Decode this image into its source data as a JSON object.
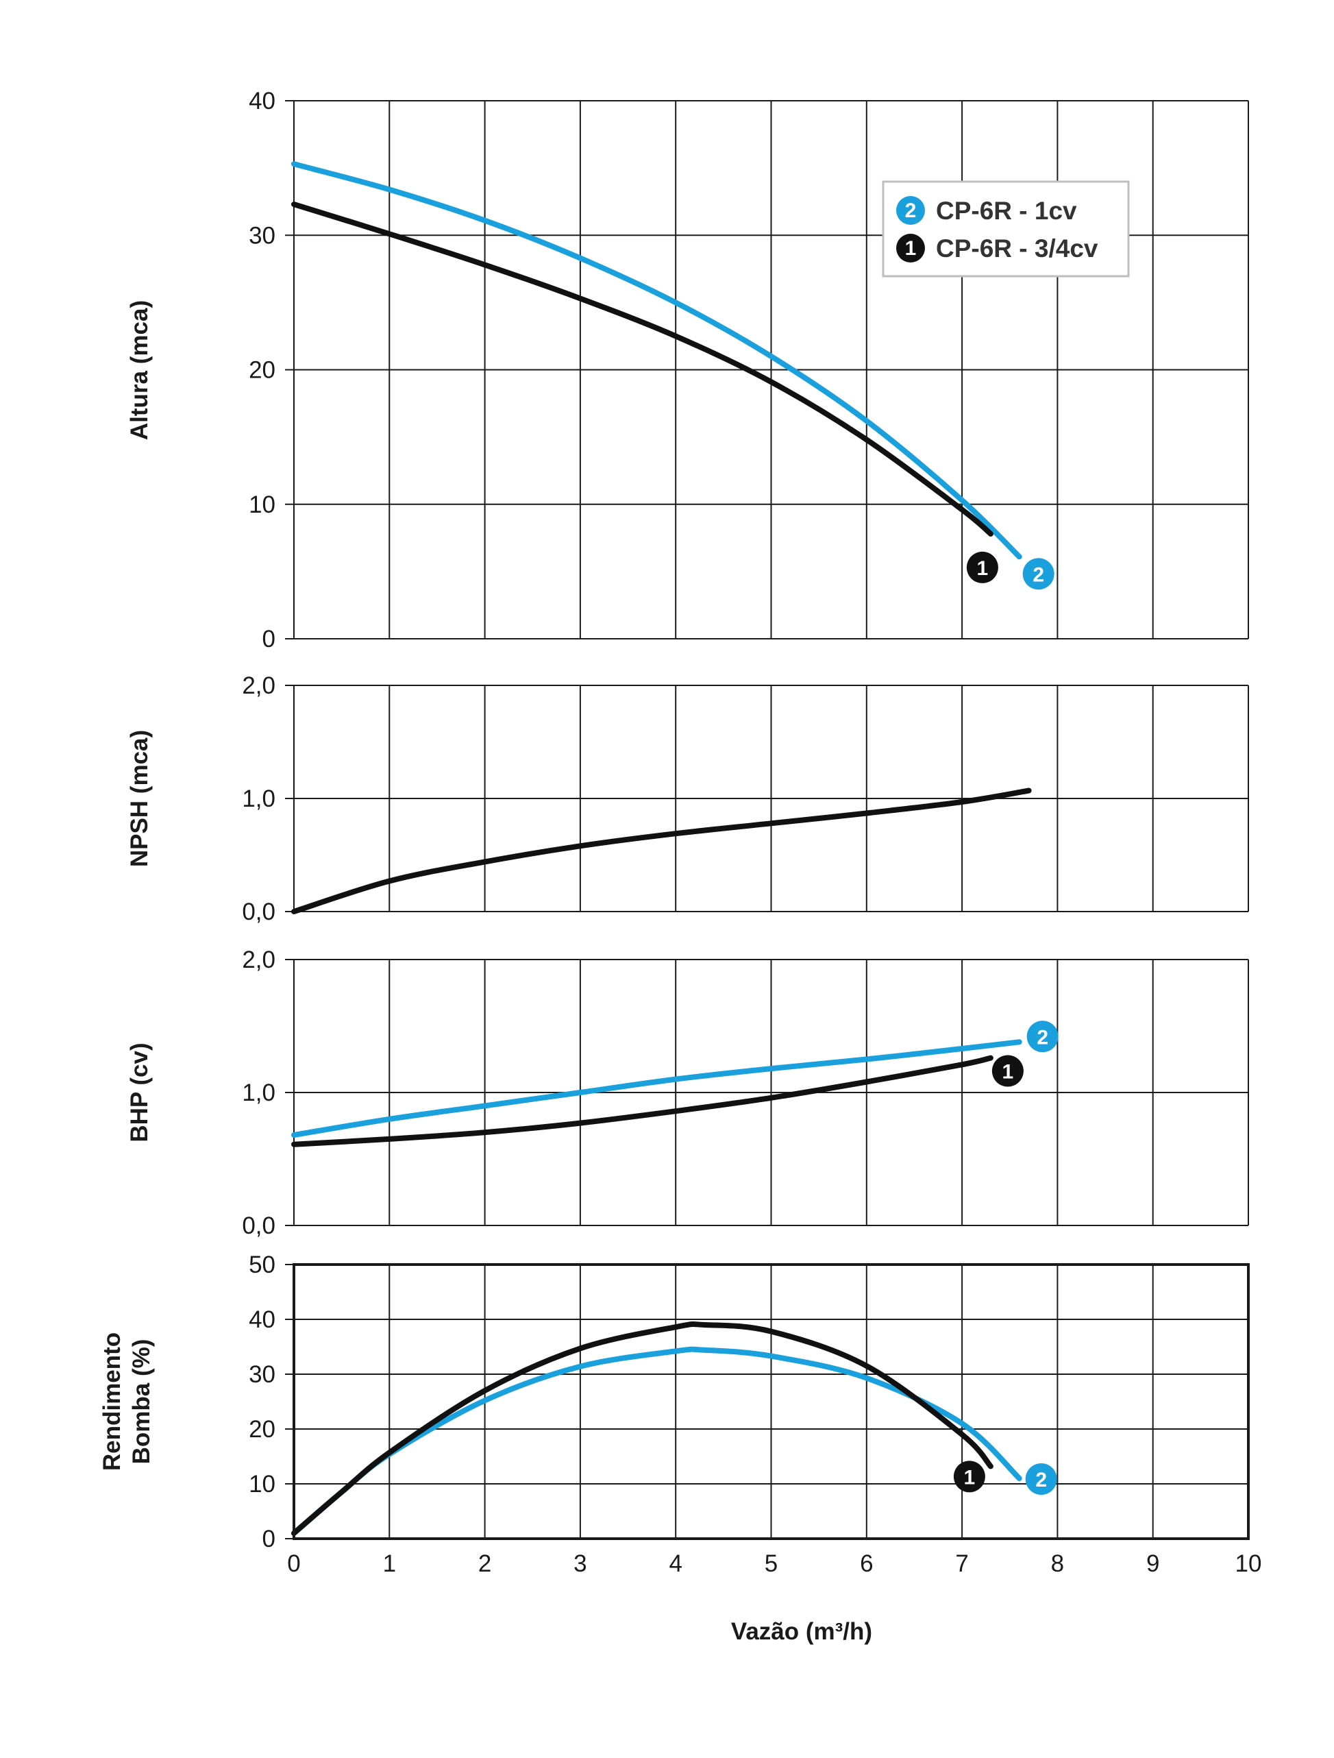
{
  "colors": {
    "curve_1": "#111111",
    "curve_2": "#1aa0dc",
    "grid": "#1a1a1a",
    "legend_border": "#bdbdbd",
    "background": "#ffffff"
  },
  "xlabel": "Vazão (m³/h)",
  "x_tick_labels": [
    "0",
    "1",
    "2",
    "3",
    "4",
    "5",
    "6",
    "7",
    "8",
    "9",
    "10"
  ],
  "legend": {
    "position": "top-right of first panel",
    "items": [
      {
        "badge": "2",
        "label": "CP-6R - 1cv",
        "color": "#1aa0dc"
      },
      {
        "badge": "1",
        "label": "CP-6R - 3/4cv",
        "color": "#111111"
      }
    ]
  },
  "chart_data": [
    {
      "type": "line",
      "ylabel": "Altura (mca)",
      "xlim": [
        0,
        10
      ],
      "ylim": [
        0,
        40
      ],
      "y_tick_labels": [
        "0",
        "10",
        "20",
        "30",
        "40"
      ],
      "grid": true,
      "series": [
        {
          "badge": "2",
          "color": "#1aa0dc",
          "x": [
            0,
            1,
            2,
            3,
            4,
            5,
            6,
            7,
            7.6
          ],
          "y": [
            35.3,
            33.4,
            31.1,
            28.3,
            25.0,
            21.0,
            16.2,
            10.3,
            6.1
          ]
        },
        {
          "badge": "1",
          "color": "#111111",
          "x": [
            0,
            1,
            2,
            3,
            4,
            5,
            6,
            7,
            7.3
          ],
          "y": [
            32.3,
            30.1,
            27.8,
            25.3,
            22.5,
            19.1,
            14.8,
            9.6,
            7.8
          ]
        }
      ]
    },
    {
      "type": "line",
      "ylabel": "NPSH (mca)",
      "xlim": [
        0,
        10
      ],
      "ylim": [
        0,
        2
      ],
      "y_tick_labels": [
        "0,0",
        "1,0",
        "2,0"
      ],
      "grid": true,
      "series": [
        {
          "badge": "",
          "color": "#111111",
          "x": [
            0,
            1,
            2,
            3,
            4,
            5,
            6,
            7,
            7.7
          ],
          "y": [
            0.0,
            0.27,
            0.44,
            0.58,
            0.69,
            0.78,
            0.87,
            0.97,
            1.07
          ]
        }
      ]
    },
    {
      "type": "line",
      "ylabel": "BHP (cv)",
      "xlim": [
        0,
        10
      ],
      "ylim": [
        0,
        2
      ],
      "y_tick_labels": [
        "0,0",
        "1,0",
        "2,0"
      ],
      "grid": true,
      "series": [
        {
          "badge": "2",
          "color": "#1aa0dc",
          "x": [
            0,
            1,
            2,
            3,
            4,
            5,
            6,
            7,
            7.6
          ],
          "y": [
            0.68,
            0.8,
            0.9,
            1.0,
            1.1,
            1.18,
            1.25,
            1.33,
            1.38
          ]
        },
        {
          "badge": "1",
          "color": "#111111",
          "x": [
            0,
            1,
            2,
            3,
            4,
            5,
            6,
            7,
            7.3
          ],
          "y": [
            0.61,
            0.65,
            0.7,
            0.77,
            0.86,
            0.96,
            1.08,
            1.21,
            1.26
          ]
        }
      ]
    },
    {
      "type": "line",
      "ylabel": "Rendimento Bomba (%)",
      "xlim": [
        0,
        10
      ],
      "ylim": [
        0,
        50
      ],
      "y_tick_labels": [
        "0",
        "10",
        "20",
        "30",
        "40",
        "50"
      ],
      "grid": true,
      "series": [
        {
          "badge": "2",
          "color": "#1aa0dc",
          "x": [
            0,
            0.5,
            1,
            2,
            3,
            4,
            4.3,
            5,
            6,
            7,
            7.6
          ],
          "y": [
            1,
            8.5,
            15.4,
            25.2,
            31.4,
            34.2,
            34.4,
            33.3,
            29.3,
            21.0,
            11.0
          ]
        },
        {
          "badge": "1",
          "color": "#111111",
          "x": [
            0,
            0.5,
            1,
            2,
            3,
            4,
            4.3,
            5,
            6,
            7,
            7.3
          ],
          "y": [
            1,
            8.5,
            15.7,
            27.0,
            34.7,
            38.6,
            39.0,
            37.8,
            31.5,
            19.0,
            13.2
          ]
        }
      ]
    }
  ]
}
